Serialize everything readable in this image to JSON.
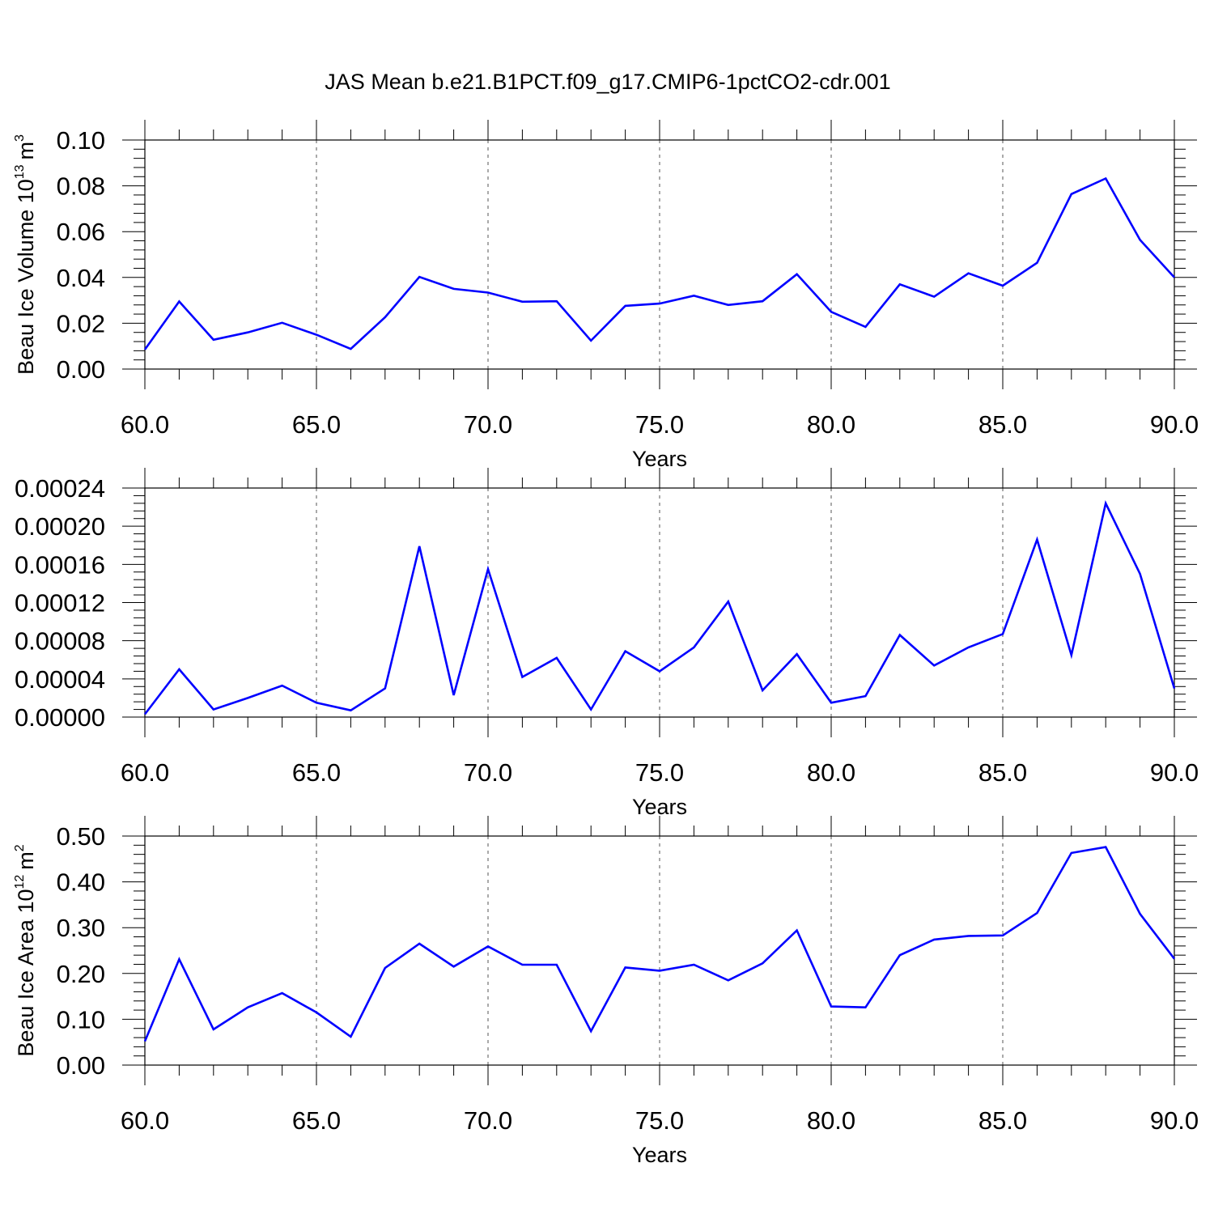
{
  "title": "JAS Mean b.e21.B1PCT.f09_g17.CMIP6-1pctCO2-cdr.001",
  "line_color": "#0000ff",
  "chart_data": [
    {
      "type": "line",
      "xlabel": "Years",
      "ylabel": {
        "prefix": "Beau Ice Volume 10",
        "exponent": "13",
        "unit": "m",
        "unit_exponent": "3"
      },
      "xlim": [
        60,
        90
      ],
      "ylim": [
        0,
        0.1
      ],
      "x_ticks": [
        "60.0",
        "65.0",
        "70.0",
        "75.0",
        "80.0",
        "85.0",
        "90.0"
      ],
      "y_ticks": [
        "0.00",
        "0.02",
        "0.04",
        "0.06",
        "0.08",
        "0.10"
      ],
      "y_tick_values": [
        0,
        0.02,
        0.04,
        0.06,
        0.08,
        0.1
      ],
      "grid": "vertical-dashed",
      "x": [
        60,
        61,
        62,
        63,
        64,
        65,
        66,
        67,
        68,
        69,
        70,
        71,
        72,
        73,
        74,
        75,
        76,
        77,
        78,
        79,
        80,
        81,
        82,
        83,
        84,
        85,
        86,
        87,
        88,
        89,
        90
      ],
      "values": [
        0.0085,
        0.0295,
        0.0128,
        0.016,
        0.0202,
        0.015,
        0.0088,
        0.0226,
        0.0402,
        0.035,
        0.0334,
        0.0294,
        0.0296,
        0.0124,
        0.0276,
        0.0286,
        0.032,
        0.028,
        0.0296,
        0.0414,
        0.025,
        0.0184,
        0.037,
        0.0316,
        0.0418,
        0.0364,
        0.0464,
        0.0764,
        0.0832,
        0.0564,
        0.04
      ]
    },
    {
      "type": "line",
      "xlabel": "Years",
      "ylabel": null,
      "xlim": [
        60,
        90
      ],
      "ylim": [
        0,
        0.00024
      ],
      "x_ticks": [
        "60.0",
        "65.0",
        "70.0",
        "75.0",
        "80.0",
        "85.0",
        "90.0"
      ],
      "y_ticks": [
        "0.00000",
        "0.00004",
        "0.00008",
        "0.00012",
        "0.00016",
        "0.00020",
        "0.00024"
      ],
      "y_tick_values": [
        0,
        4e-05,
        8e-05,
        0.00012,
        0.00016,
        0.0002,
        0.00024
      ],
      "grid": "vertical-dashed",
      "x": [
        60,
        61,
        62,
        63,
        64,
        65,
        66,
        67,
        68,
        69,
        70,
        71,
        72,
        73,
        74,
        75,
        76,
        77,
        78,
        79,
        80,
        81,
        82,
        83,
        84,
        85,
        86,
        87,
        88,
        89,
        90
      ],
      "values": [
        3e-06,
        5e-05,
        8e-06,
        2e-05,
        3.3e-05,
        1.5e-05,
        7e-06,
        3e-05,
        0.000179,
        2.3e-05,
        0.000155,
        4.2e-05,
        6.2e-05,
        8e-06,
        6.9e-05,
        4.8e-05,
        7.3e-05,
        0.000121,
        2.8e-05,
        6.6e-05,
        1.5e-05,
        2.2e-05,
        8.6e-05,
        5.4e-05,
        7.3e-05,
        8.7e-05,
        0.000186,
        6.5e-05,
        0.000224,
        0.00015,
        3e-05
      ]
    },
    {
      "type": "line",
      "xlabel": "Years",
      "ylabel": {
        "prefix": "Beau Ice Area 10",
        "exponent": "12",
        "unit": "m",
        "unit_exponent": "2"
      },
      "xlim": [
        60,
        90
      ],
      "ylim": [
        0,
        0.5
      ],
      "x_ticks": [
        "60.0",
        "65.0",
        "70.0",
        "75.0",
        "80.0",
        "85.0",
        "90.0"
      ],
      "y_ticks": [
        "0.00",
        "0.10",
        "0.20",
        "0.30",
        "0.40",
        "0.50"
      ],
      "y_tick_values": [
        0,
        0.1,
        0.2,
        0.3,
        0.4,
        0.5
      ],
      "grid": "vertical-dashed",
      "x": [
        60,
        61,
        62,
        63,
        64,
        65,
        66,
        67,
        68,
        69,
        70,
        71,
        72,
        73,
        74,
        75,
        76,
        77,
        78,
        79,
        80,
        81,
        82,
        83,
        84,
        85,
        86,
        87,
        88,
        89,
        90
      ],
      "values": [
        0.052,
        0.231,
        0.078,
        0.126,
        0.157,
        0.115,
        0.062,
        0.212,
        0.265,
        0.215,
        0.259,
        0.219,
        0.219,
        0.074,
        0.213,
        0.206,
        0.219,
        0.185,
        0.222,
        0.294,
        0.128,
        0.126,
        0.24,
        0.274,
        0.282,
        0.283,
        0.332,
        0.463,
        0.476,
        0.33,
        0.232
      ]
    }
  ]
}
